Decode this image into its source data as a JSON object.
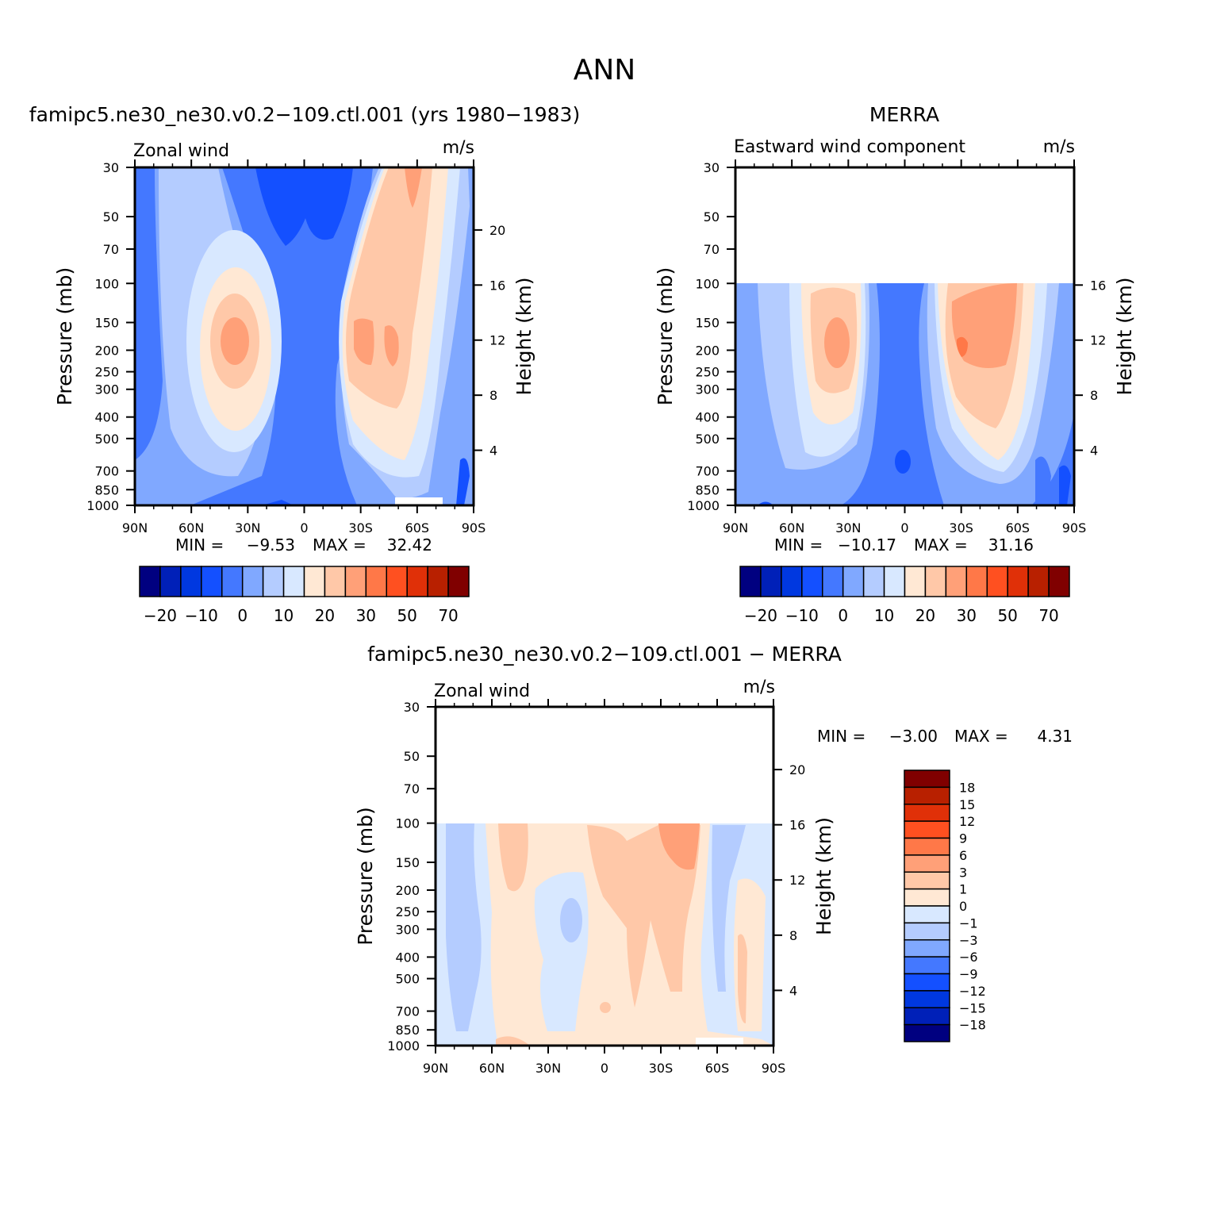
{
  "figure": {
    "title": "ANN"
  },
  "panels": [
    {
      "id": "model",
      "title": "famipc5.ne30_ne30.v0.2−109.ctl.001 (yrs 1980−1983)",
      "left_label": "Zonal wind",
      "units": "m/s",
      "stats": {
        "min_label": "MIN =",
        "min": "−9.53",
        "max_label": "MAX =",
        "max": "32.42"
      }
    },
    {
      "id": "obs",
      "title": "MERRA",
      "left_label": "Eastward wind component",
      "units": "m/s",
      "stats": {
        "min_label": "MIN =",
        "min": "−10.17",
        "max_label": "MAX =",
        "max": "31.16"
      }
    },
    {
      "id": "diff",
      "title": "famipc5.ne30_ne30.v0.2−109.ctl.001 − MERRA",
      "left_label": "Zonal wind",
      "units": "m/s",
      "stats": {
        "min_label": "MIN =",
        "min": "−3.00",
        "max_label": "MAX =",
        "max": "4.31"
      }
    }
  ],
  "axes": {
    "x_ticks": [
      "90N",
      "60N",
      "30N",
      "0",
      "30S",
      "60S",
      "90S"
    ],
    "y_label": "Pressure (mb)",
    "y_ticks": [
      "30",
      "50",
      "70",
      "100",
      "150",
      "200",
      "250",
      "300",
      "400",
      "500",
      "700",
      "850",
      "1000"
    ],
    "y2_label": "Height (km)",
    "y2_ticks_full": [
      "20",
      "16",
      "12",
      "8",
      "4"
    ],
    "y2_ticks_merra": [
      "16",
      "12",
      "8",
      "4"
    ]
  },
  "colorbars": {
    "main_colors": [
      "#000080",
      "#0020b8",
      "#0038e0",
      "#1450ff",
      "#4478ff",
      "#80a8ff",
      "#b4ccff",
      "#d8e8ff",
      "#ffe8d4",
      "#ffc8a8",
      "#ffa078",
      "#ff7848",
      "#ff5020",
      "#e03008",
      "#b82000",
      "#800000"
    ],
    "main_labels": [
      "−20",
      "−10",
      "0",
      "10",
      "20",
      "30",
      "50",
      "70"
    ],
    "diff_colors": [
      "#800000",
      "#b82000",
      "#e03008",
      "#ff5020",
      "#ff7848",
      "#ffa078",
      "#ffc8a8",
      "#ffe8d4",
      "#d8e8ff",
      "#b4ccff",
      "#80a8ff",
      "#4478ff",
      "#1450ff",
      "#0038e0",
      "#0020b8",
      "#000080"
    ],
    "diff_labels": [
      "18",
      "15",
      "12",
      "9",
      "6",
      "3",
      "1",
      "0",
      "−1",
      "−3",
      "−6",
      "−9",
      "−12",
      "−15",
      "−18"
    ]
  },
  "chart_data": [
    {
      "type": "heatmap",
      "title": "famipc5.ne30_ne30.v0.2−109.ctl.001 (yrs 1980−1983)",
      "xlabel": "",
      "ylabel": "Pressure (mb)",
      "x_categories": [
        "90N",
        "60N",
        "30N",
        "0",
        "30S",
        "60S",
        "90S"
      ],
      "y_ticks_mb": [
        30,
        50,
        70,
        100,
        150,
        200,
        250,
        300,
        400,
        500,
        700,
        850,
        1000
      ],
      "ylim_mb": [
        1000,
        30
      ],
      "units": "m/s",
      "min": -9.53,
      "max": 32.42,
      "features": [
        {
          "desc": "westerly jet NH",
          "lat": 35,
          "p_mb": 200,
          "value": 25
        },
        {
          "desc": "westerly jet SH",
          "lat": -40,
          "p_mb": 200,
          "value": 32
        },
        {
          "desc": "tropical easterlies",
          "lat": 0,
          "p_mb": 50,
          "value": -9
        }
      ]
    },
    {
      "type": "heatmap",
      "title": "MERRA",
      "ylabel": "Pressure (mb)",
      "x_categories": [
        "90N",
        "60N",
        "30N",
        "0",
        "30S",
        "60S",
        "90S"
      ],
      "y_ticks_mb": [
        30,
        50,
        70,
        100,
        150,
        200,
        250,
        300,
        400,
        500,
        700,
        850,
        1000
      ],
      "ylim_mb": [
        1000,
        30
      ],
      "units": "m/s",
      "min": -10.17,
      "max": 31.16,
      "data_top_mb": 100
    },
    {
      "type": "heatmap",
      "title": "famipc5.ne30_ne30.v0.2−109.ctl.001 − MERRA",
      "ylabel": "Pressure (mb)",
      "x_categories": [
        "90N",
        "60N",
        "30N",
        "0",
        "30S",
        "60S",
        "90S"
      ],
      "y_ticks_mb": [
        30,
        50,
        70,
        100,
        150,
        200,
        250,
        300,
        400,
        500,
        700,
        850,
        1000
      ],
      "ylim_mb": [
        1000,
        30
      ],
      "units": "m/s",
      "min": -3.0,
      "max": 4.31,
      "data_top_mb": 100
    }
  ]
}
